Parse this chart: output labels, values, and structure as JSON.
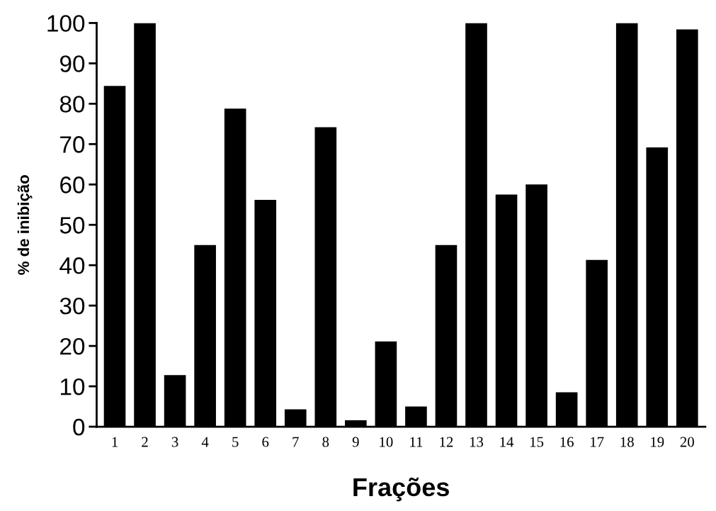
{
  "chart_data": {
    "type": "bar",
    "xlabel": "Frações",
    "ylabel": "% de inibição",
    "categories": [
      "1",
      "2",
      "3",
      "4",
      "5",
      "6",
      "7",
      "8",
      "9",
      "10",
      "11",
      "12",
      "13",
      "14",
      "15",
      "16",
      "17",
      "18",
      "19",
      "20"
    ],
    "values": [
      84.4,
      100,
      12.8,
      45,
      78.8,
      56.2,
      4.3,
      74.2,
      1.6,
      21.1,
      5,
      45,
      100,
      57.5,
      60,
      8.5,
      41.3,
      100,
      69.2,
      98.4
    ],
    "color": "#000000",
    "ylim": [
      0,
      100
    ],
    "yticks": [
      0,
      10,
      20,
      30,
      40,
      50,
      60,
      70,
      80,
      90,
      100
    ],
    "grid": false,
    "legend": false
  }
}
